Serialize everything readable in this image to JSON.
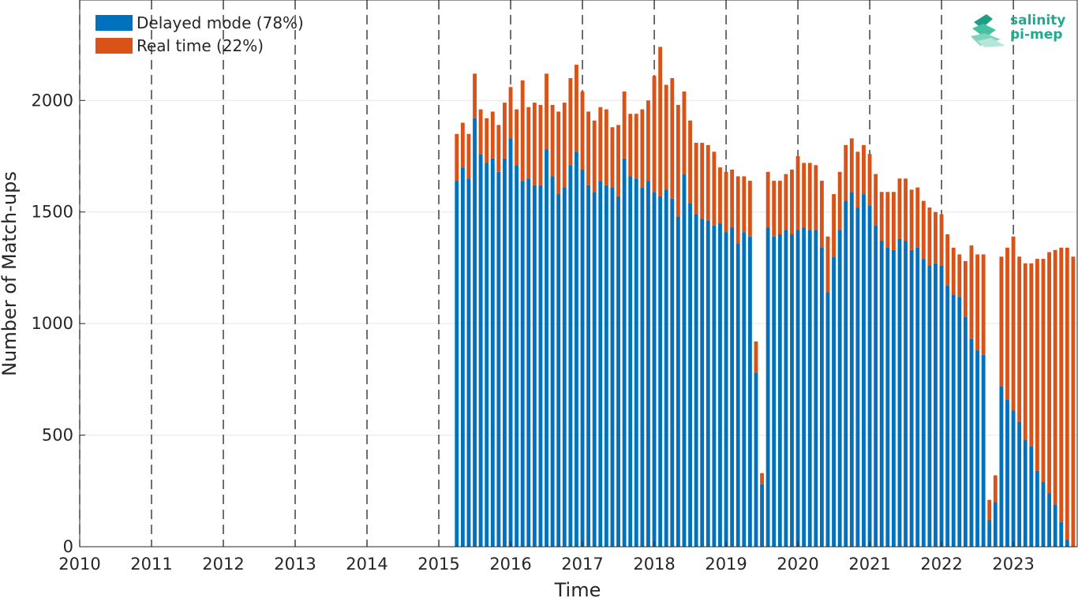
{
  "chart_data": {
    "type": "bar",
    "stacked": true,
    "xlabel": "Time",
    "ylabel": "Number of Match-ups",
    "xlim": [
      2010,
      2023.9
    ],
    "ylim": [
      0,
      2450
    ],
    "xticks": [
      "2010",
      "2011",
      "2012",
      "2013",
      "2014",
      "2015",
      "2016",
      "2017",
      "2018",
      "2019",
      "2020",
      "2021",
      "2022",
      "2023"
    ],
    "yticks": [
      0,
      500,
      1000,
      1500,
      2000
    ],
    "vertical_dashed_lines_at": [
      2010,
      2011,
      2012,
      2013,
      2014,
      2015,
      2016,
      2017,
      2018,
      2019,
      2020,
      2021,
      2022,
      2023
    ],
    "grid": "horizontal",
    "legend_position": "top-left",
    "bar_start": 2015.25,
    "bar_step_years": 0.08333,
    "series": [
      {
        "name": "Delayed mode (78%)",
        "color": "#0072BD",
        "values": [
          1640,
          1700,
          1650,
          1920,
          1760,
          1720,
          1740,
          1680,
          1740,
          1830,
          1710,
          1640,
          1650,
          1620,
          1620,
          1780,
          1660,
          1580,
          1610,
          1710,
          1770,
          1690,
          1620,
          1590,
          1640,
          1620,
          1610,
          1570,
          1740,
          1660,
          1650,
          1610,
          1640,
          1590,
          1570,
          1600,
          1560,
          1480,
          1670,
          1540,
          1490,
          1470,
          1460,
          1440,
          1450,
          1410,
          1430,
          1360,
          1410,
          1390,
          780,
          280,
          1430,
          1390,
          1400,
          1420,
          1400,
          1420,
          1430,
          1420,
          1420,
          1340,
          1140,
          1300,
          1420,
          1550,
          1590,
          1520,
          1580,
          1530,
          1440,
          1370,
          1340,
          1330,
          1380,
          1370,
          1330,
          1340,
          1290,
          1260,
          1270,
          1260,
          1170,
          1130,
          1120,
          1030,
          930,
          880,
          860,
          120,
          200,
          720,
          660,
          610,
          560,
          480,
          450,
          340,
          290,
          240,
          190,
          110,
          30,
          0
        ],
        "legend_label": "Delayed mode (78%)"
      },
      {
        "name": "Real time (22%)",
        "color": "#D95319",
        "values": [
          210,
          200,
          200,
          200,
          200,
          200,
          210,
          210,
          250,
          230,
          250,
          450,
          320,
          370,
          360,
          340,
          320,
          370,
          380,
          390,
          390,
          350,
          330,
          320,
          330,
          340,
          270,
          320,
          300,
          280,
          290,
          350,
          360,
          520,
          670,
          470,
          540,
          500,
          370,
          370,
          320,
          340,
          340,
          330,
          250,
          270,
          260,
          300,
          250,
          250,
          140,
          50,
          250,
          250,
          240,
          250,
          290,
          330,
          290,
          300,
          290,
          300,
          250,
          280,
          260,
          250,
          240,
          250,
          220,
          230,
          230,
          220,
          250,
          260,
          270,
          280,
          270,
          270,
          260,
          260,
          230,
          230,
          230,
          210,
          190,
          250,
          420,
          430,
          450,
          90,
          120,
          580,
          680,
          780,
          740,
          790,
          820,
          950,
          1000,
          1080,
          1140,
          1230,
          1310,
          1300
        ],
        "legend_label": "Real time (22%)"
      }
    ]
  },
  "logo": {
    "line1": "salinity",
    "line2": "pi-mep"
  }
}
